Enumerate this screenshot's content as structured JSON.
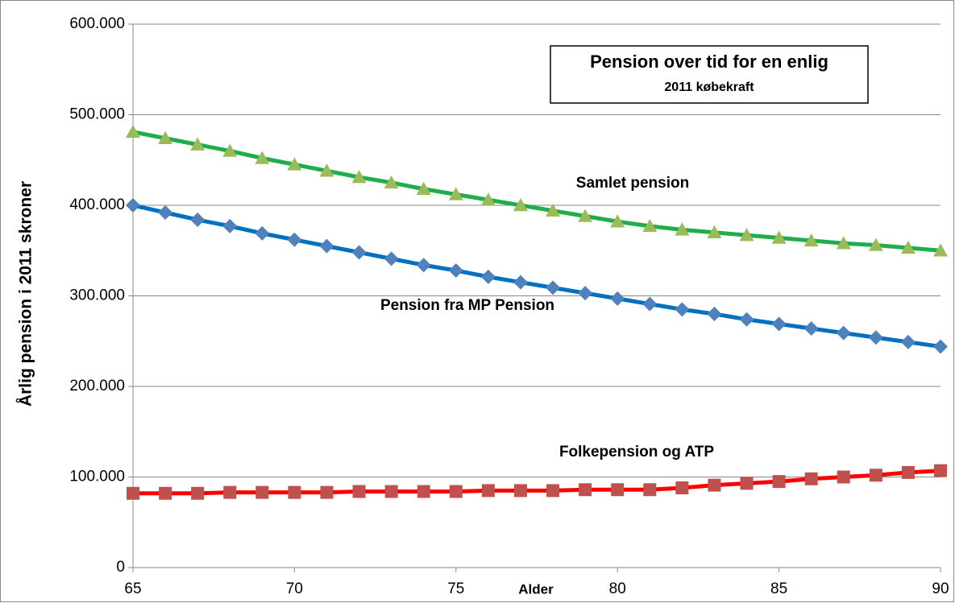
{
  "chart_data": {
    "type": "line",
    "title": "Pension over tid for en enlig",
    "subtitle": "2011 købekraft",
    "y_label": "Årlig pension i 2011 skroner",
    "x_label": "Alder",
    "x": [
      65,
      66,
      67,
      68,
      69,
      70,
      71,
      72,
      73,
      74,
      75,
      76,
      77,
      78,
      79,
      80,
      81,
      82,
      83,
      84,
      85,
      86,
      87,
      88,
      89,
      90
    ],
    "xlim": [
      65,
      90
    ],
    "xticks": [
      65,
      70,
      75,
      80,
      85,
      90
    ],
    "ylim": [
      0,
      600000
    ],
    "yticks": [
      0,
      {
        "value": 100000,
        "label": "100.000"
      },
      {
        "value": 200000,
        "label": "200.000"
      },
      {
        "value": 300000,
        "label": "300.000"
      },
      {
        "value": 400000,
        "label": "400.000"
      },
      {
        "value": 500000,
        "label": "500.000"
      },
      {
        "value": 600000,
        "label": "600.000"
      }
    ],
    "grid": true,
    "series": [
      {
        "name": "Samlet pension",
        "color": "#1fae4b",
        "marker_color": "#9bbb59",
        "marker": "triangle",
        "values": [
          481000,
          474000,
          467000,
          460000,
          452000,
          445000,
          438000,
          431000,
          425000,
          418000,
          412000,
          406000,
          400000,
          394000,
          388000,
          382000,
          377000,
          373000,
          370000,
          367000,
          364000,
          361000,
          358000,
          356000,
          353000,
          350000
        ]
      },
      {
        "name": "Pension fra MP Pension",
        "color": "#0070c0",
        "marker_color": "#4f81bd",
        "marker": "diamond",
        "values": [
          400000,
          392000,
          384000,
          377000,
          369000,
          362000,
          355000,
          348000,
          341000,
          334000,
          328000,
          321000,
          315000,
          309000,
          303000,
          297000,
          291000,
          285000,
          280000,
          274000,
          269000,
          264000,
          259000,
          254000,
          249000,
          244000
        ]
      },
      {
        "name": "Folkepension og ATP",
        "color": "#ff0000",
        "marker_color": "#c0504d",
        "marker": "square",
        "values": [
          82000,
          82000,
          82000,
          83000,
          83000,
          83000,
          83000,
          84000,
          84000,
          84000,
          84000,
          85000,
          85000,
          85000,
          86000,
          86000,
          86000,
          88000,
          91000,
          93000,
          95000,
          98000,
          100000,
          102000,
          105000,
          107000
        ]
      }
    ]
  }
}
